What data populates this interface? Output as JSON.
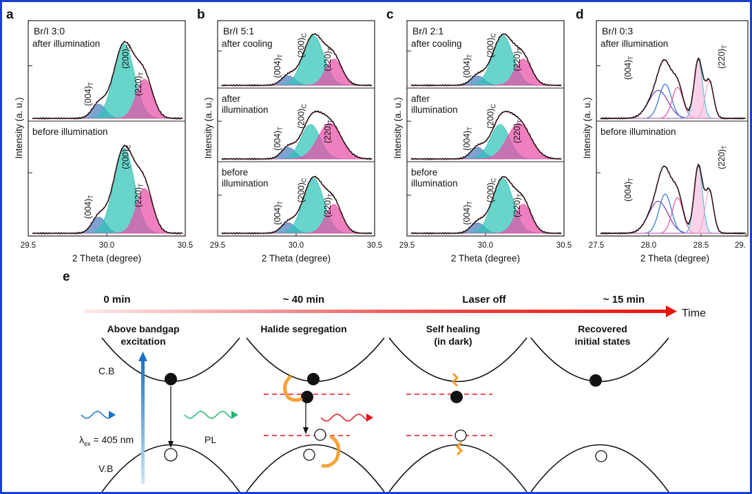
{
  "panels": [
    {
      "label": "a",
      "ratio": "Br/I 3:0",
      "xtick_labels": [
        "29.5",
        "30.0",
        "30.5"
      ],
      "xlabel": "2 Theta (degree)",
      "ylabel": "Intensity (a. u.)",
      "rows": [
        {
          "condition": "after illumination",
          "peaks": [
            {
              "name": "(004)",
              "sub": "T"
            },
            {
              "name": "(200)",
              "sub": "C"
            },
            {
              "name": "(220)",
              "sub": "T"
            }
          ]
        },
        {
          "condition": "before illumination",
          "peaks": [
            {
              "name": "(004)",
              "sub": "T"
            },
            {
              "name": "(200)",
              "sub": "C"
            },
            {
              "name": "(220)",
              "sub": "T"
            }
          ]
        }
      ]
    },
    {
      "label": "b",
      "ratio": "Br/I 5:1",
      "xtick_labels": [
        "29.5",
        "30.0",
        "30.5"
      ],
      "xlabel": "2 Theta (degree)",
      "ylabel": "Intensity (a. u.)",
      "rows": [
        {
          "condition": "after cooling",
          "peaks": [
            {
              "name": "(004)",
              "sub": "T"
            },
            {
              "name": "(200)",
              "sub": "C"
            },
            {
              "name": "(220)",
              "sub": "T"
            }
          ]
        },
        {
          "condition_lines": [
            "after",
            "illumination"
          ],
          "peaks": [
            {
              "name": "(004)",
              "sub": "T"
            },
            {
              "name": "(200)",
              "sub": "C"
            },
            {
              "name": "(220)",
              "sub": "T"
            }
          ]
        },
        {
          "condition_lines": [
            "before",
            "illumination"
          ],
          "peaks": [
            {
              "name": "(004)",
              "sub": "T"
            },
            {
              "name": "(200)",
              "sub": "C"
            },
            {
              "name": "(220)",
              "sub": "T"
            }
          ]
        }
      ]
    },
    {
      "label": "c",
      "ratio": "Br/I 2:1",
      "xtick_labels": [
        "29.5",
        "30.0",
        "30.5"
      ],
      "xlabel": "2 Theta (degree)",
      "ylabel": "Intensity (a. u.)",
      "rows": [
        {
          "condition": "after cooling",
          "peaks": [
            {
              "name": "(004)",
              "sub": "T"
            },
            {
              "name": "(200)",
              "sub": "C"
            },
            {
              "name": "(220)",
              "sub": "T"
            }
          ]
        },
        {
          "condition_lines": [
            "after",
            "illumination"
          ],
          "peaks": [
            {
              "name": "(004)",
              "sub": "T"
            },
            {
              "name": "(200)",
              "sub": "C"
            },
            {
              "name": "(220)",
              "sub": "T"
            }
          ]
        },
        {
          "condition_lines": [
            "before",
            "illumination"
          ],
          "peaks": [
            {
              "name": "(004)",
              "sub": "T"
            },
            {
              "name": "(200)",
              "sub": "C"
            },
            {
              "name": "(220)",
              "sub": "T"
            }
          ]
        }
      ]
    },
    {
      "label": "d",
      "ratio": "Br/I 0:3",
      "xtick_labels": [
        "27.5",
        "28.0",
        "28.5",
        "29."
      ],
      "xlabel": "2 Theta (degree)",
      "ylabel": "Intensity (a. u.)",
      "rows": [
        {
          "condition": "after illumination",
          "peaks": [
            {
              "name": "(004)",
              "sub": "T"
            },
            {
              "name": "(220)",
              "sub": "T"
            }
          ]
        },
        {
          "condition": "before illumination",
          "peaks": [
            {
              "name": "(004)",
              "sub": "T"
            },
            {
              "name": "(220)",
              "sub": "T"
            }
          ]
        }
      ]
    }
  ],
  "schematic": {
    "label": "e",
    "time_label": "Time",
    "time_points": [
      "0 min",
      "~ 40 min",
      "Laser off",
      "~ 15 min"
    ],
    "stages": [
      [
        "Above bandgap",
        "excitation"
      ],
      [
        "Halide segregation"
      ],
      [
        "Self healing",
        "(in dark)"
      ],
      [
        "Recovered",
        "initial states"
      ]
    ],
    "band_labels": {
      "cb": "C.B",
      "vb": "V.B"
    },
    "excitation": {
      "lambda_symbol": "λ",
      "lambda_sub": "ex",
      "value": " = 405 nm"
    },
    "pl_label": "PL",
    "colors": {
      "arrow_start": "#fbe3e3",
      "arrow_end": "#e8140c",
      "teal": "#2ec4b6",
      "pink": "#e94fa7",
      "laser_blue": "#1a73c8",
      "pl_green": "#22b573",
      "trap_red": "#e8141c",
      "segregation_orange": "#f59a23"
    }
  }
}
